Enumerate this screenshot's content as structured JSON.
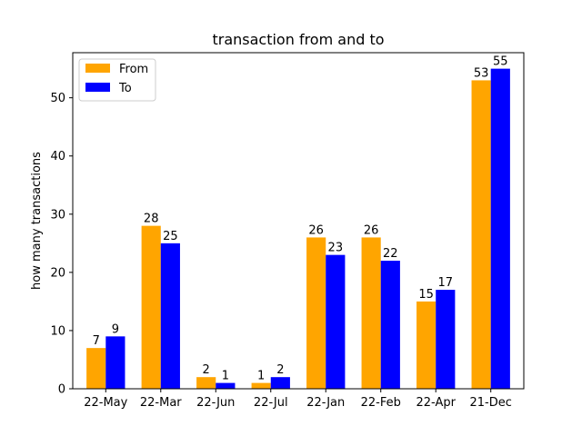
{
  "chart_data": {
    "type": "bar",
    "title": "transaction from and to",
    "xlabel": "",
    "ylabel": "how many transactions",
    "categories": [
      "22-May",
      "22-Mar",
      "22-Jun",
      "22-Jul",
      "22-Jan",
      "22-Feb",
      "22-Apr",
      "21-Dec"
    ],
    "series": [
      {
        "name": "From",
        "color": "#FFA500",
        "values": [
          7,
          28,
          2,
          1,
          26,
          26,
          15,
          53
        ]
      },
      {
        "name": "To",
        "color": "#0000FF",
        "values": [
          9,
          25,
          1,
          2,
          23,
          22,
          17,
          55
        ]
      }
    ],
    "ylim": [
      0,
      57.75
    ],
    "yticks": [
      0,
      10,
      20,
      30,
      40,
      50
    ],
    "grid": false,
    "legend_position": "top-left",
    "data_labels": true
  }
}
